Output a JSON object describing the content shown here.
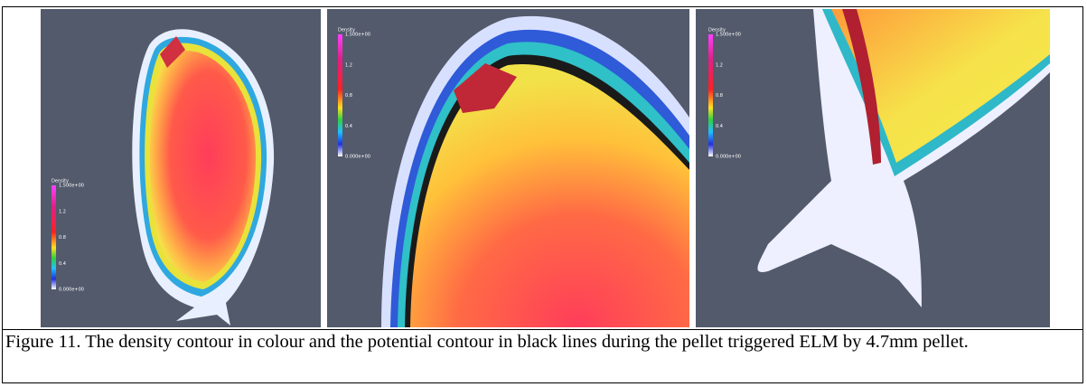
{
  "figure": {
    "panels": [
      {
        "colorbar": {
          "title": "Density",
          "max": "1.500e+00",
          "ticks": [
            "1.2",
            "0.8",
            "0.4"
          ],
          "min": "0.000e+00"
        }
      },
      {
        "colorbar": {
          "title": "Density",
          "max": "1.500e+00",
          "ticks": [
            "1.2",
            "0.8",
            "0.4"
          ],
          "min": "0.000e+00"
        }
      },
      {
        "colorbar": {
          "title": "Density",
          "max": "1.500e+00",
          "ticks": [
            "1.2",
            "0.8",
            "0.4"
          ],
          "min": "0.000e+00"
        }
      }
    ],
    "caption": "Figure 11. The density contour in colour and the potential contour in black lines during the pellet triggered ELM by 4.7mm pellet."
  }
}
